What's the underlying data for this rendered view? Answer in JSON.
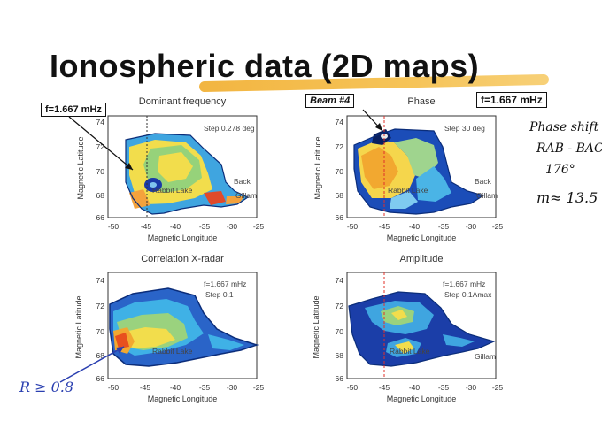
{
  "slide": {
    "title": "Ionospheric data (2D maps)",
    "colors": {
      "highlight": "#f2b030",
      "arrow_blue": "#2a3fb0"
    }
  },
  "panels": [
    {
      "id": "dominant-frequency",
      "title": "Dominant frequency",
      "step": "Step 0.278 deg",
      "in_plot_freq": "",
      "xlabel": "Magnetic Longitude",
      "ylabel": "Magnetic Latitude",
      "xticks": [
        "-50",
        "-45",
        "-40",
        "-35",
        "-30",
        "-25"
      ],
      "yticks": [
        "66",
        "68",
        "70",
        "72",
        "74"
      ],
      "places": [
        "Rabbit Lake",
        "Back",
        "Gillam"
      ]
    },
    {
      "id": "phase",
      "title": "Phase",
      "step": "Step 30 deg",
      "in_plot_freq": "",
      "xlabel": "Magnetic Longitude",
      "ylabel": "Magnetic Latitude",
      "xticks": [
        "-50",
        "-45",
        "-40",
        "-35",
        "-30",
        "-25"
      ],
      "yticks": [
        "66",
        "68",
        "70",
        "72",
        "74"
      ],
      "places": [
        "Rabbit Lake",
        "Back",
        "Gillam"
      ]
    },
    {
      "id": "correlation",
      "title": "Correlation X-radar",
      "step": "Step 0.1",
      "in_plot_freq": "f=1.667 mHz",
      "xlabel": "Magnetic Longitude",
      "ylabel": "Magnetic Latitude",
      "xticks": [
        "-50",
        "-45",
        "-40",
        "-35",
        "-30",
        "-25"
      ],
      "yticks": [
        "66",
        "68",
        "70",
        "72",
        "74"
      ],
      "places": [
        "Rabbit Lake"
      ]
    },
    {
      "id": "amplitude",
      "title": "Amplitude",
      "step": "Step 0.1Amax",
      "in_plot_freq": "f=1.667 mHz",
      "xlabel": "Magnetic Longitude",
      "ylabel": "Magnetic Latitude",
      "xticks": [
        "-50",
        "-45",
        "-40",
        "-35",
        "-30",
        "-25"
      ],
      "yticks": [
        "66",
        "68",
        "70",
        "72",
        "74"
      ],
      "places": [
        "Rabbit Lake",
        "Gillam"
      ]
    }
  ],
  "callouts": {
    "freq_box_left": "f=1.667 mHz",
    "beam_box": "Beam #4",
    "freq_box_right": "f=1.667 mHz"
  },
  "handwritten": {
    "line1": "Phase shift",
    "line2": "RAB - BAC",
    "line3": "176°",
    "line4": "m≈ 13.5",
    "corr": "R ≥ 0.8"
  }
}
